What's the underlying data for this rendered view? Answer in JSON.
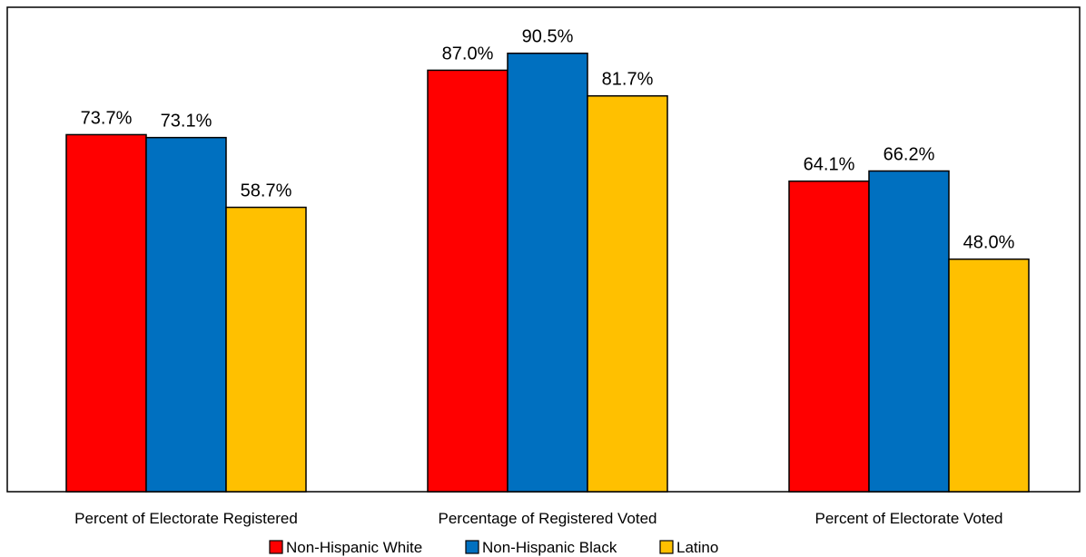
{
  "chart_data": {
    "type": "bar",
    "categories": [
      "Percent of Electorate Registered",
      "Percentage of Registered Voted",
      "Percent of Electorate Voted"
    ],
    "series": [
      {
        "name": "Non-Hispanic White",
        "color": "#ff0000",
        "values": [
          73.7,
          87.0,
          64.1
        ],
        "labels": [
          "73.7%",
          "87.0%",
          "64.1%"
        ]
      },
      {
        "name": "Non-Hispanic Black",
        "color": "#0070c0",
        "values": [
          73.1,
          90.5,
          66.2
        ],
        "labels": [
          "73.1%",
          "90.5%",
          "66.2%"
        ]
      },
      {
        "name": "Latino",
        "color": "#ffc000",
        "values": [
          58.7,
          81.7,
          48.0
        ],
        "labels": [
          "58.7%",
          "81.7%",
          "48.0%"
        ]
      }
    ],
    "title": "",
    "xlabel": "",
    "ylabel": "",
    "ylim": [
      0,
      100
    ],
    "grid": false,
    "legend_position": "bottom"
  }
}
